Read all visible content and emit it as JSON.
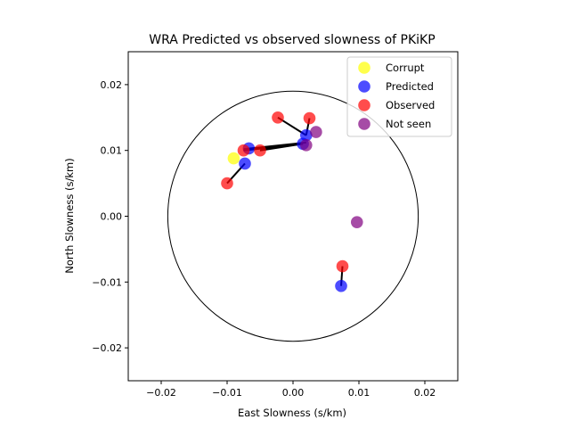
{
  "chart_data": {
    "type": "scatter",
    "title": "WRA Predicted vs observed slowness of PKiKP",
    "xlabel": "East Slowness (s/km)",
    "ylabel": "North Slowness (s/km)",
    "xlim": [
      -0.025,
      0.025
    ],
    "ylim": [
      -0.025,
      0.025
    ],
    "xticks": [
      -0.02,
      -0.01,
      0.0,
      0.01,
      0.02
    ],
    "yticks": [
      -0.02,
      -0.01,
      0.0,
      0.01,
      0.02
    ],
    "xtick_labels": [
      "−0.02",
      "−0.01",
      "0.00",
      "0.01",
      "0.02"
    ],
    "ytick_labels": [
      "−0.02",
      "−0.01",
      "0.00",
      "0.01",
      "0.02"
    ],
    "grid": false,
    "legend_position": "top-right",
    "circle_radius": 0.019,
    "series": [
      {
        "name": "Corrupt",
        "color": "#ffff00",
        "points": [
          [
            -0.009,
            0.0088
          ]
        ]
      },
      {
        "name": "Predicted",
        "color": "#0000ff",
        "points": [
          [
            -0.0067,
            0.0103
          ],
          [
            -0.0073,
            0.008
          ],
          [
            0.0015,
            0.011
          ],
          [
            0.002,
            0.0123
          ],
          [
            0.0073,
            -0.0106
          ]
        ]
      },
      {
        "name": "Observed",
        "color": "#ff0000",
        "points": [
          [
            -0.0075,
            0.01
          ],
          [
            -0.005,
            0.01
          ],
          [
            -0.01,
            0.005
          ],
          [
            -0.0023,
            0.015
          ],
          [
            0.0025,
            0.0149
          ],
          [
            0.0075,
            -0.0076
          ]
        ]
      },
      {
        "name": "Not seen",
        "color": "#800080",
        "points": [
          [
            0.002,
            0.0108
          ],
          [
            0.0035,
            0.0128
          ],
          [
            0.0097,
            -0.0009
          ]
        ]
      }
    ],
    "connections": [
      [
        [
          -0.0073,
          0.008
        ],
        [
          -0.01,
          0.005
        ]
      ],
      [
        [
          -0.0067,
          0.0103
        ],
        [
          -0.0075,
          0.01
        ]
      ],
      [
        [
          -0.0075,
          0.01
        ],
        [
          0.0015,
          0.011
        ]
      ],
      [
        [
          -0.005,
          0.01
        ],
        [
          0.0015,
          0.011
        ]
      ],
      [
        [
          -0.0075,
          0.0102
        ],
        [
          0.002,
          0.0112
        ]
      ],
      [
        [
          -0.0023,
          0.015
        ],
        [
          0.002,
          0.0123
        ]
      ],
      [
        [
          0.0025,
          0.0149
        ],
        [
          0.002,
          0.0123
        ]
      ],
      [
        [
          0.0073,
          -0.0106
        ],
        [
          0.0075,
          -0.0076
        ]
      ]
    ]
  }
}
